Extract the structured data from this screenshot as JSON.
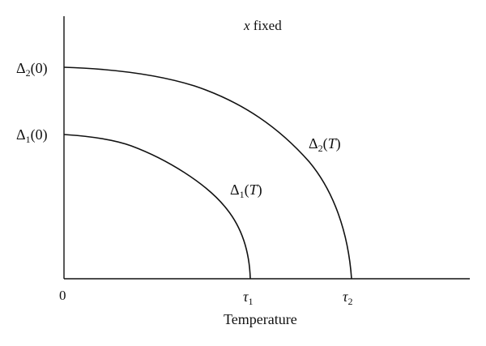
{
  "annotation": {
    "var": "x",
    "text": " fixed"
  },
  "axes": {
    "origin_label": "0",
    "x_label": "Temperature",
    "x_ticks": [
      {
        "sym": "τ",
        "sub": "1"
      },
      {
        "sym": "τ",
        "sub": "2"
      }
    ],
    "y_ticks": [
      {
        "sym": "Δ",
        "sub": "2",
        "arg": "(0)"
      },
      {
        "sym": "Δ",
        "sub": "1",
        "arg": "(0)"
      }
    ]
  },
  "curves": [
    {
      "sym": "Δ",
      "sub": "1",
      "arg_open": "(",
      "arg_var": "T",
      "arg_close": ")"
    },
    {
      "sym": "Δ",
      "sub": "2",
      "arg_open": "(",
      "arg_var": "T",
      "arg_close": ")"
    }
  ]
}
